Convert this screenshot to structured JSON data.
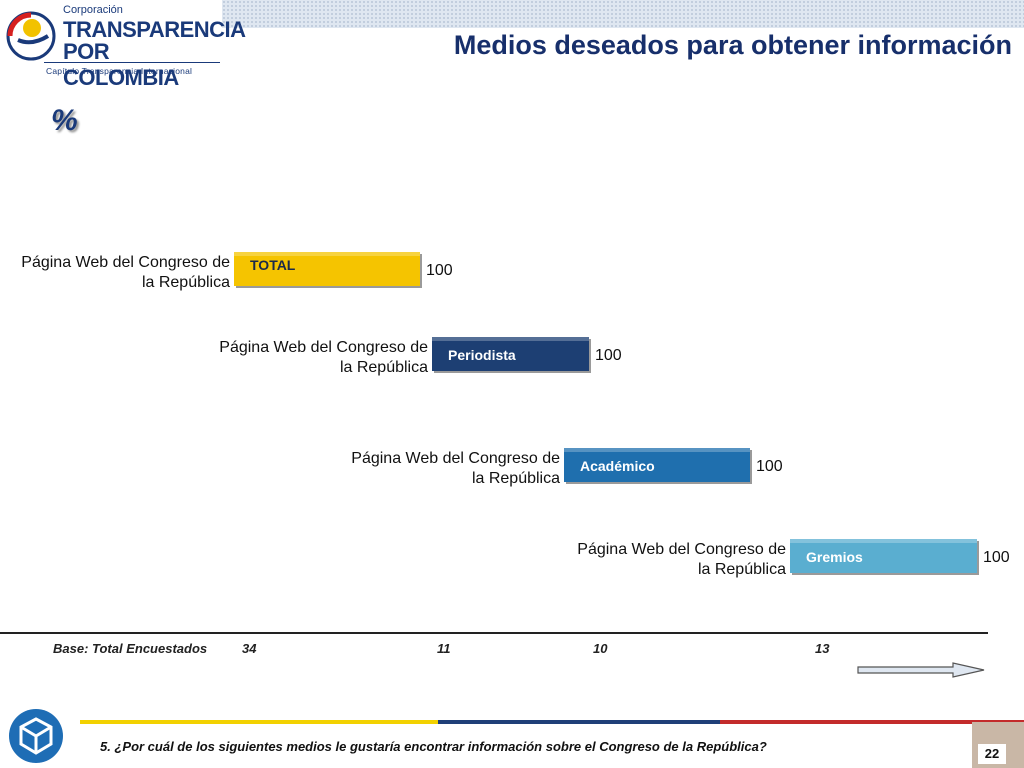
{
  "logo": {
    "line1": "Corporación",
    "line2": "TRANSPARENCIA",
    "line3": "POR COLOMBIA",
    "line4": "Capítulo Transparencia Internacional"
  },
  "title": "Medios deseados para obtener información",
  "unit_label": "%",
  "chart_data": {
    "type": "bar",
    "series": [
      {
        "name": "TOTAL",
        "category": "Página Web del Congreso de la República",
        "value": 100,
        "base": 34,
        "color": "#f5c400"
      },
      {
        "name": "Periodista",
        "category": "Página Web del Congreso de la República",
        "value": 100,
        "base": 11,
        "color": "#1d3f73"
      },
      {
        "name": "Académico",
        "category": "Página Web del Congreso de la República",
        "value": 100,
        "base": 10,
        "color": "#1f6fae"
      },
      {
        "name": "Gremios",
        "category": "Página Web del Congreso de la República",
        "value": 100,
        "base": 13,
        "color": "#5aaed0"
      }
    ]
  },
  "footer": {
    "base_label": "Base: Total Encuestados",
    "bases": [
      "34",
      "11",
      "10",
      "13"
    ],
    "question": "5. ¿Por cuál de los siguientes medios le gustaría encontrar información sobre el Congreso de la República?",
    "page": "22"
  }
}
